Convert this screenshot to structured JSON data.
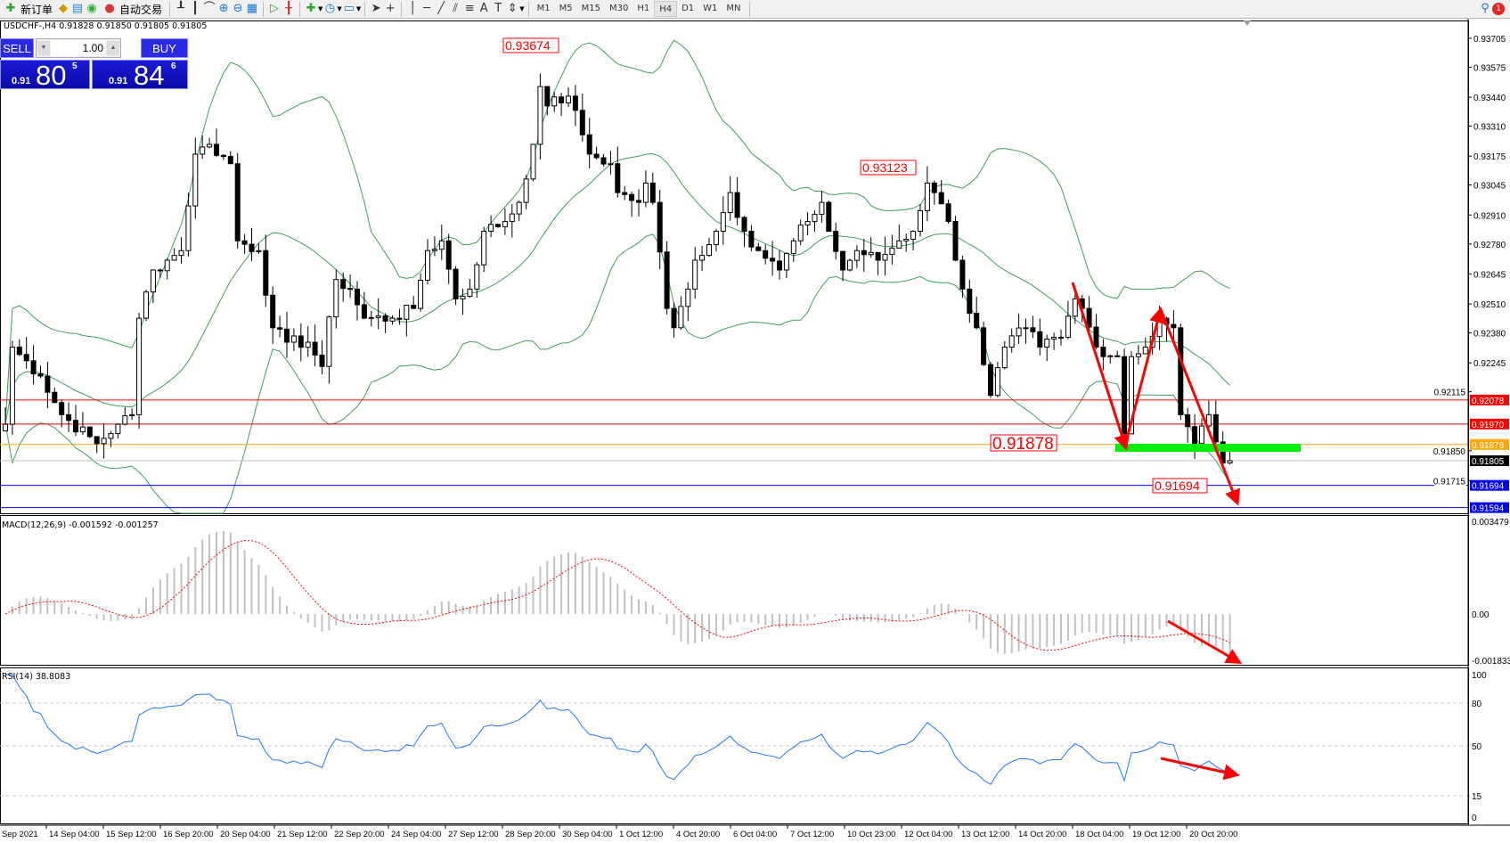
{
  "toolbar": {
    "new_order": "新订单",
    "auto_trading": "自动交易",
    "timeframes": [
      "M1",
      "M5",
      "M15",
      "M30",
      "H1",
      "H4",
      "D1",
      "W1",
      "MN"
    ],
    "active_timeframe": "H4",
    "notification_count": "1"
  },
  "chart": {
    "header": "USDCHF-,H4  0.91828 0.91850 0.91805 0.91805",
    "symbol": "USDCHF-",
    "timeframe": "H4",
    "trade_panel": {
      "sell_label": "SELL",
      "buy_label": "BUY",
      "lot": "1.00",
      "bid_prefix": "0.91",
      "bid_big": "80",
      "bid_sup": "5",
      "ask_prefix": "0.91",
      "ask_big": "84",
      "ask_sup": "6"
    },
    "price_axis": [
      "0.93705",
      "0.93575",
      "0.93440",
      "0.93310",
      "0.93175",
      "0.93045",
      "0.92910",
      "0.92780",
      "0.92645",
      "0.92510",
      "0.92380",
      "0.92245",
      "0.92115",
      "0.91850",
      "0.91715"
    ],
    "hlines": [
      {
        "price": "0.92078",
        "color": "#ff0000"
      },
      {
        "price": "0.91970",
        "color": "#ff0000"
      },
      {
        "price": "0.91878",
        "color": "#ffa500"
      },
      {
        "price": "0.91805",
        "color": "#000000",
        "line": "#c0c0c0"
      },
      {
        "price": "0.91694",
        "color": "#0000ff"
      },
      {
        "price": "0.91594",
        "color": "#0000ff"
      }
    ],
    "annotations": [
      "0.93674",
      "0.93123",
      "0.91878",
      "0.91694"
    ],
    "price_path": [
      [
        0,
        0.91969
      ],
      [
        1,
        0.92316
      ],
      [
        5,
        0.92186
      ],
      [
        8,
        0.92012
      ],
      [
        13,
        0.91882
      ],
      [
        16,
        0.91969
      ],
      [
        18,
        0.92012
      ],
      [
        19,
        0.92446
      ],
      [
        21,
        0.92663
      ],
      [
        23,
        0.92707
      ],
      [
        25,
        0.9275
      ],
      [
        27,
        0.93184
      ],
      [
        29,
        0.93228
      ],
      [
        32,
        0.93141
      ],
      [
        33,
        0.92794
      ],
      [
        36,
        0.9275
      ],
      [
        38,
        0.92403
      ],
      [
        40,
        0.92338
      ],
      [
        43,
        0.92338
      ],
      [
        45,
        0.92229
      ],
      [
        47,
        0.9262
      ],
      [
        49,
        0.92577
      ],
      [
        51,
        0.92446
      ],
      [
        55,
        0.92446
      ],
      [
        58,
        0.9249
      ],
      [
        60,
        0.9275
      ],
      [
        62,
        0.92794
      ],
      [
        64,
        0.92533
      ],
      [
        66,
        0.92577
      ],
      [
        68,
        0.92837
      ],
      [
        71,
        0.92881
      ],
      [
        73,
        0.92967
      ],
      [
        75,
        0.93228
      ],
      [
        76,
        0.93488
      ],
      [
        77,
        0.93401
      ],
      [
        80,
        0.93445
      ],
      [
        82,
        0.93271
      ],
      [
        83,
        0.93184
      ],
      [
        86,
        0.93141
      ],
      [
        87,
        0.93011
      ],
      [
        90,
        0.92967
      ],
      [
        91,
        0.93054
      ],
      [
        92,
        0.92967
      ],
      [
        94,
        0.9249
      ],
      [
        95,
        0.92403
      ],
      [
        97,
        0.92577
      ],
      [
        98,
        0.92707
      ],
      [
        101,
        0.92837
      ],
      [
        103,
        0.93011
      ],
      [
        105,
        0.92837
      ],
      [
        107,
        0.9275
      ],
      [
        110,
        0.92663
      ],
      [
        112,
        0.92794
      ],
      [
        114,
        0.92881
      ],
      [
        116,
        0.92967
      ],
      [
        117,
        0.92837
      ],
      [
        119,
        0.92663
      ],
      [
        121,
        0.9275
      ],
      [
        124,
        0.92707
      ],
      [
        127,
        0.92794
      ],
      [
        129,
        0.92837
      ],
      [
        131,
        0.93054
      ],
      [
        132,
        0.93011
      ],
      [
        134,
        0.92881
      ],
      [
        135,
        0.92707
      ],
      [
        136,
        0.92577
      ],
      [
        138,
        0.92403
      ],
      [
        140,
        0.92099
      ],
      [
        142,
        0.92316
      ],
      [
        145,
        0.92403
      ],
      [
        147,
        0.92316
      ],
      [
        150,
        0.9236
      ],
      [
        152,
        0.92533
      ],
      [
        153,
        0.9249
      ],
      [
        155,
        0.92316
      ],
      [
        158,
        0.92273
      ],
      [
        159,
        0.91926
      ],
      [
        160,
        0.92273
      ],
      [
        162,
        0.92316
      ],
      [
        164,
        0.92446
      ],
      [
        166,
        0.92403
      ],
      [
        167,
        0.92012
      ],
      [
        169,
        0.91882
      ],
      [
        171,
        0.92012
      ],
      [
        173,
        0.91795
      ],
      [
        174,
        0.91805
      ]
    ],
    "colors": {
      "bands": "#3aa05a",
      "macd_hist": "#c0c0c0",
      "macd_signal": "#ff0000",
      "rsi": "#1e78ff",
      "arrow": "#ff0000",
      "zone": "#00ee00"
    }
  },
  "macd": {
    "label": "MACD(12,26,9) -0.001592 -0.001257",
    "axis": [
      "0.003479",
      "0.00",
      "-0.001833"
    ]
  },
  "rsi": {
    "label": "RSI(14) 38.8083",
    "axis": [
      "100",
      "80",
      "50",
      "15",
      "0"
    ]
  },
  "time_axis": [
    "Sep 2021",
    "14 Sep 04:00",
    "15 Sep 12:00",
    "16 Sep 20:00",
    "20 Sep 04:00",
    "21 Sep 12:00",
    "22 Sep 20:00",
    "24 Sep 04:00",
    "27 Sep 12:00",
    "28 Sep 20:00",
    "30 Sep 04:00",
    "1 Oct 12:00",
    "4 Oct 20:00",
    "6 Oct 04:00",
    "7 Oct 12:00",
    "10 Oct 23:00",
    "12 Oct 04:00",
    "13 Oct 12:00",
    "14 Oct 20:00",
    "18 Oct 04:00",
    "19 Oct 12:00",
    "20 Oct 20:00"
  ]
}
